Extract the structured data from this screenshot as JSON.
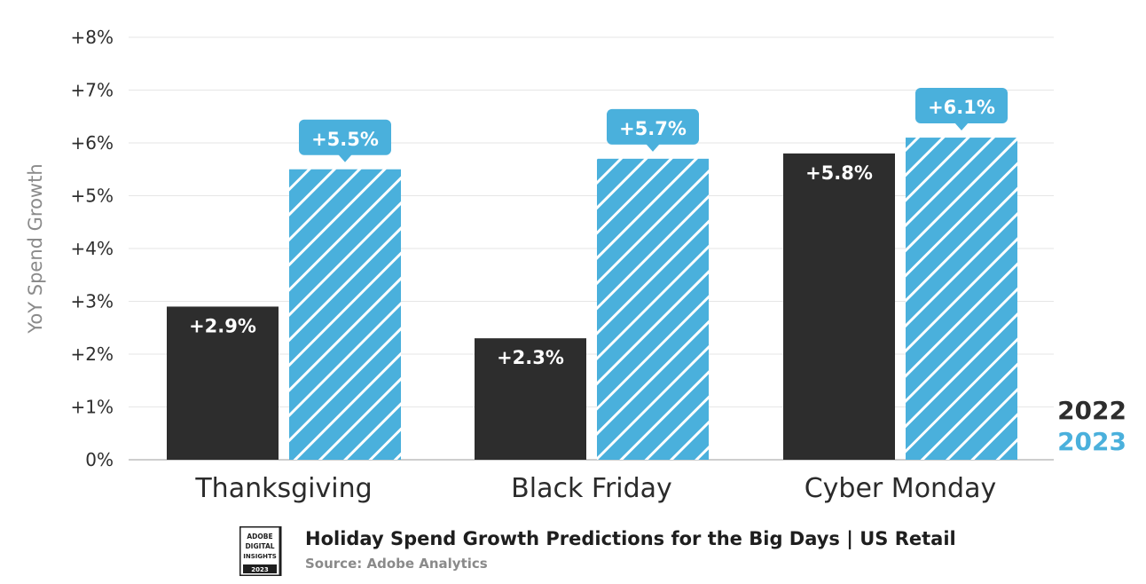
{
  "chart_data": {
    "type": "bar",
    "categories": [
      "Thanksgiving",
      "Black Friday",
      "Cyber Monday"
    ],
    "series": [
      {
        "name": "2022",
        "values": [
          2.9,
          2.3,
          5.8
        ],
        "labels": [
          "+2.9%",
          "+2.3%",
          "+5.8%"
        ],
        "color": "#2d2d2d",
        "pattern": "solid"
      },
      {
        "name": "2023",
        "values": [
          5.5,
          5.7,
          6.1
        ],
        "labels": [
          "+5.5%",
          "+5.7%",
          "+6.1%"
        ],
        "color": "#4ab0dc",
        "pattern": "diagonal-hatch"
      }
    ],
    "ylabel": "YoY Spend Growth",
    "ylim": [
      0,
      8
    ],
    "yticks": [
      "0%",
      "+1%",
      "+2%",
      "+3%",
      "+4%",
      "+5%",
      "+6%",
      "+7%",
      "+8%"
    ],
    "grid": true,
    "legend_position": "bottom-right"
  },
  "footer": {
    "title": "Holiday Spend Growth Predictions for the Big Days | US Retail",
    "source": "Source: Adobe Analytics",
    "logo_text": [
      "ADOBE",
      "DIGITAL",
      "INSIGHTS",
      "2023"
    ]
  }
}
